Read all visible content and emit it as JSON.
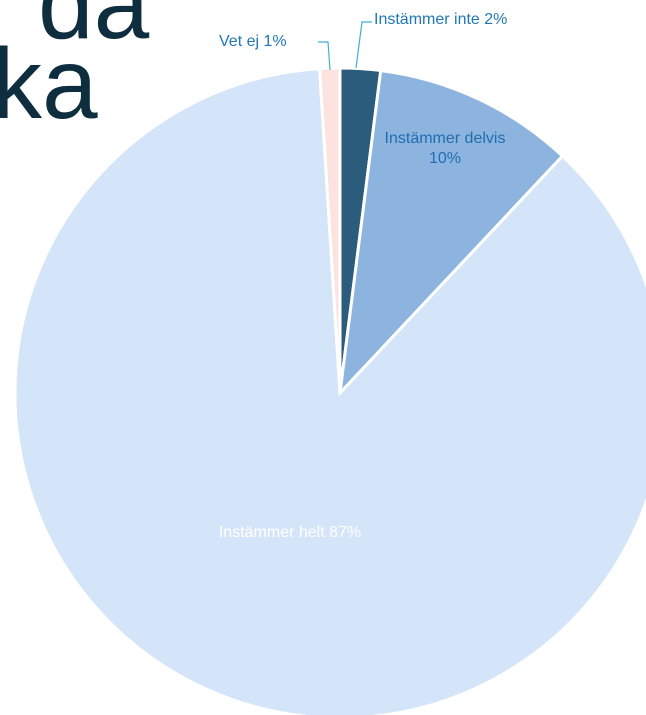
{
  "title_lines": [
    "da",
    "ka"
  ],
  "chart_data": {
    "type": "pie",
    "categories": [
      "Instämmer inte",
      "Instämmer delvis",
      "Instämmer helt",
      "Vet ej"
    ],
    "values": [
      2,
      10,
      87,
      1
    ],
    "value_labels": [
      "2%",
      "10%",
      "87%",
      "1%"
    ],
    "colors": [
      "#2b5c7c",
      "#8db3df",
      "#d5e5f9",
      "#fce3df"
    ]
  }
}
